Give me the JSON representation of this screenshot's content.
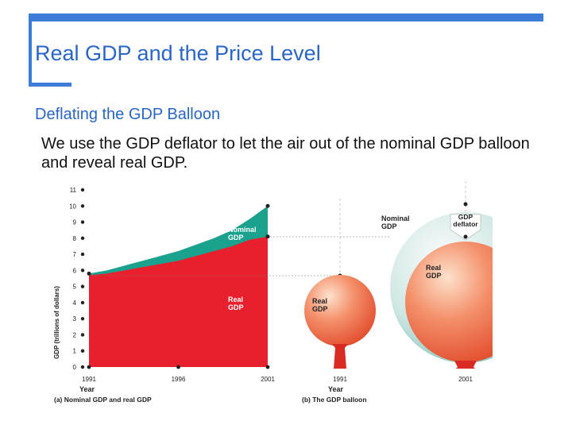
{
  "slide": {
    "title": "Real GDP and the Price Level",
    "heading": "Deflating the GDP Balloon",
    "body": "We use the GDP deflator to let the air out of the nominal GDP balloon and reveal real GDP."
  },
  "colors": {
    "accent": "#3b7dd8",
    "title": "#2a66c8",
    "nominal": "#1aa28f",
    "real": "#e8202e",
    "balloon_outer": "#bfe0dc",
    "balloon_inner": "#f07a5c"
  },
  "chart_data": [
    {
      "type": "area",
      "caption": "(a) Nominal GDP and real GDP",
      "xlabel": "Year",
      "ylabel": "GDP (trillions of dollars)",
      "x_ticks": [
        "1991",
        "1996",
        "2001"
      ],
      "y_ticks": [
        "0",
        "1",
        "2",
        "3",
        "4",
        "5",
        "6",
        "7",
        "8",
        "9",
        "10",
        "11"
      ],
      "xlim": [
        1991,
        2001
      ],
      "ylim": [
        0,
        11
      ],
      "x": [
        1991,
        1992,
        1993,
        1994,
        1995,
        1996,
        1997,
        1998,
        1999,
        2000,
        2001
      ],
      "series": [
        {
          "name": "Nominal GDP",
          "label_lines": [
            "Nominal",
            "GDP"
          ],
          "values": [
            5.8,
            6.0,
            6.3,
            6.6,
            6.9,
            7.2,
            7.6,
            8.0,
            8.5,
            9.2,
            10.0
          ]
        },
        {
          "name": "Real GDP",
          "label_lines": [
            "Real",
            "GDP"
          ],
          "values": [
            5.7,
            5.8,
            6.0,
            6.2,
            6.4,
            6.6,
            6.9,
            7.2,
            7.5,
            7.9,
            8.1
          ]
        }
      ]
    },
    {
      "type": "other",
      "caption": "(b) The GDP balloon",
      "xlabel": "Year",
      "x_ticks": [
        "1991",
        "2001"
      ],
      "balloons": [
        {
          "year": "1991",
          "label_lines": [
            "Real",
            "GDP"
          ],
          "value": 5.8
        },
        {
          "year": "2001",
          "inner_label_lines": [
            "Real",
            "GDP"
          ],
          "outer_label_lines": [
            "Nominal",
            "GDP"
          ],
          "deflator_label_lines": [
            "GDP",
            "deflator"
          ],
          "nominal": 10.0,
          "real": 8.1
        }
      ]
    }
  ]
}
